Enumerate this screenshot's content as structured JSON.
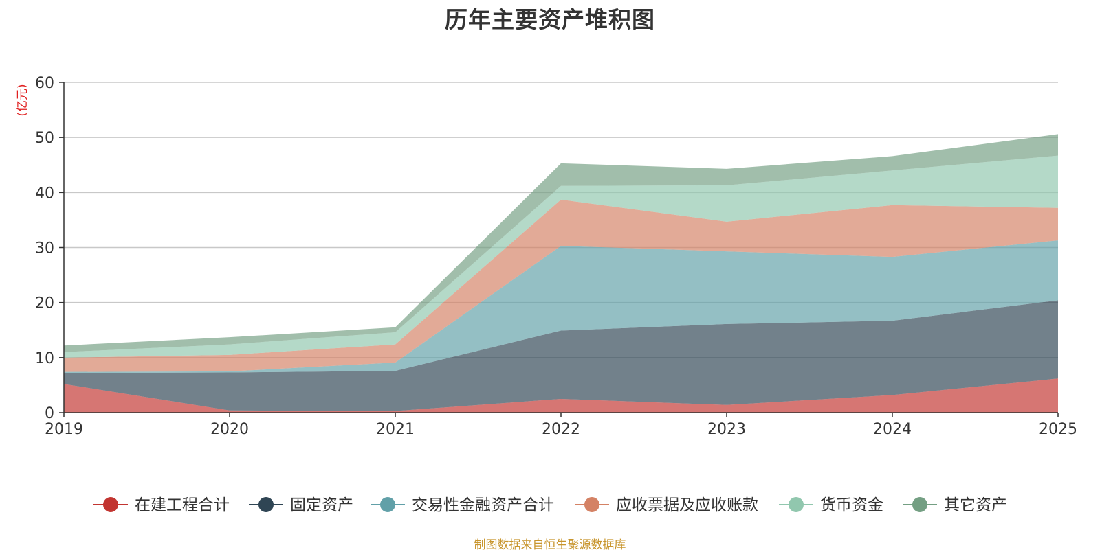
{
  "chart_data": {
    "type": "area",
    "stacked": true,
    "title": "历年主要资产堆积图",
    "ylabel": "(亿元)",
    "xlabel": "",
    "ylim": [
      0,
      60
    ],
    "yticks": [
      0,
      10,
      20,
      30,
      40,
      50,
      60
    ],
    "categories": [
      "2019",
      "2020",
      "2021",
      "2022",
      "2023",
      "2024",
      "2025"
    ],
    "series": [
      {
        "name": "在建工程合计",
        "color": "#c23531",
        "values": [
          5.2,
          0.4,
          0.3,
          2.5,
          1.4,
          3.2,
          6.2
        ]
      },
      {
        "name": "固定资产",
        "color": "#2f4554",
        "values": [
          2.0,
          6.9,
          7.3,
          12.4,
          14.7,
          13.5,
          14.2
        ]
      },
      {
        "name": "交易性金融资产合计",
        "color": "#61a0a8",
        "values": [
          0.2,
          0.2,
          1.5,
          15.4,
          13.2,
          11.6,
          10.9
        ]
      },
      {
        "name": "应收票据及应收账款",
        "color": "#d48265",
        "values": [
          2.6,
          3.0,
          3.3,
          8.4,
          5.4,
          9.4,
          5.9
        ]
      },
      {
        "name": "货币资金",
        "color": "#91c7ae",
        "values": [
          1.0,
          1.9,
          2.2,
          2.5,
          6.6,
          6.3,
          9.5
        ]
      },
      {
        "name": "其它资产",
        "color": "#749f83",
        "values": [
          1.2,
          1.3,
          0.9,
          4.1,
          3.0,
          2.6,
          3.9
        ]
      }
    ],
    "legend_position": "bottom",
    "grid": true
  },
  "source_note": "制图数据来自恒生聚源数据库"
}
